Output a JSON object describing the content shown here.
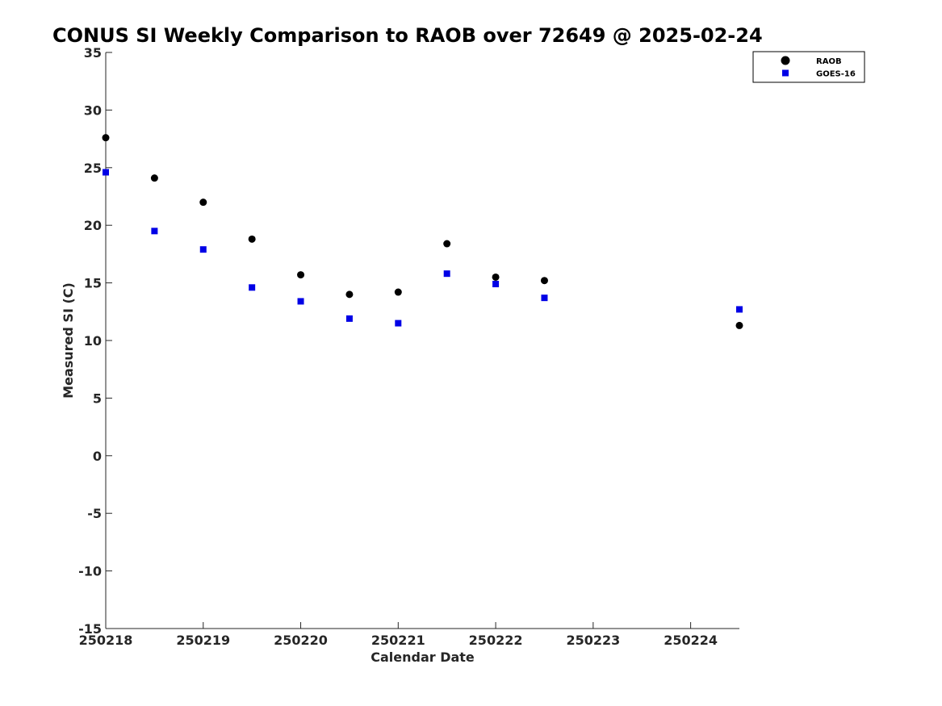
{
  "chart_data": {
    "type": "scatter",
    "title": "CONUS SI Weekly Comparison to RAOB over 72649 @ 2025-02-24",
    "xlabel": "Calendar Date",
    "ylabel": "Measured SI (C)",
    "xlim": [
      0,
      6.5
    ],
    "ylim": [
      -15,
      35
    ],
    "x_ticks": [
      0,
      1,
      2,
      3,
      4,
      5,
      6
    ],
    "x_tick_labels": [
      "250218",
      "250219",
      "250220",
      "250221",
      "250222",
      "250223",
      "250224"
    ],
    "y_ticks": [
      -15,
      -10,
      -5,
      0,
      5,
      10,
      15,
      20,
      25,
      30,
      35
    ],
    "y_tick_labels": [
      "-15",
      "-10",
      "-5",
      "0",
      "5",
      "10",
      "15",
      "20",
      "25",
      "30",
      "35"
    ],
    "grid": false,
    "legend_position": "top-right",
    "series": [
      {
        "name": "RAOB",
        "marker": "circle",
        "color": "#000000",
        "points": [
          {
            "x": 0.0,
            "y": 27.6
          },
          {
            "x": 0.5,
            "y": 24.1
          },
          {
            "x": 1.0,
            "y": 22.0
          },
          {
            "x": 1.5,
            "y": 18.8
          },
          {
            "x": 2.0,
            "y": 15.7
          },
          {
            "x": 2.5,
            "y": 14.0
          },
          {
            "x": 3.0,
            "y": 14.2
          },
          {
            "x": 3.5,
            "y": 18.4
          },
          {
            "x": 4.0,
            "y": 15.5
          },
          {
            "x": 4.5,
            "y": 15.2
          },
          {
            "x": 6.5,
            "y": 11.3
          }
        ]
      },
      {
        "name": "GOES-16",
        "marker": "square",
        "color": "#0000e6",
        "points": [
          {
            "x": 0.0,
            "y": 24.6
          },
          {
            "x": 0.5,
            "y": 19.5
          },
          {
            "x": 1.0,
            "y": 17.9
          },
          {
            "x": 1.5,
            "y": 14.6
          },
          {
            "x": 2.0,
            "y": 13.4
          },
          {
            "x": 2.5,
            "y": 11.9
          },
          {
            "x": 3.0,
            "y": 11.5
          },
          {
            "x": 3.5,
            "y": 15.8
          },
          {
            "x": 4.0,
            "y": 14.9
          },
          {
            "x": 4.5,
            "y": 13.7
          },
          {
            "x": 6.5,
            "y": 12.7
          }
        ]
      }
    ]
  }
}
